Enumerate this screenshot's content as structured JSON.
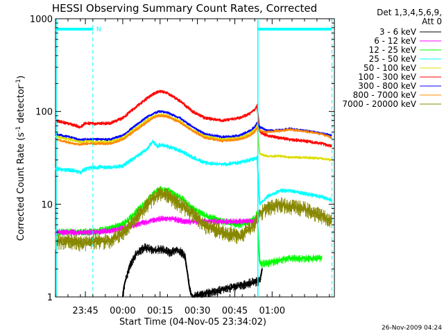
{
  "chart_data": {
    "type": "line",
    "title": "HESSI Observing Summary Count Rates, Corrected",
    "xlabel": "Start Time (04-Nov-05 23:34:02)",
    "ylabel_main": "Corrected Count Rate (s",
    "ylabel_exp1": "-1",
    "ylabel_mid": " detector",
    "ylabel_exp2": "-1",
    "ylabel_end": ")",
    "y_scale": "log",
    "ylim": [
      1,
      1000
    ],
    "xlim_minutes": [
      -12,
      100
    ],
    "x_ticks": [
      {
        "m": 0,
        "label": "23:45"
      },
      {
        "m": 15,
        "label": "00:00"
      },
      {
        "m": 30,
        "label": "00:15"
      },
      {
        "m": 45,
        "label": "00:30"
      },
      {
        "m": 60,
        "label": "00:45"
      },
      {
        "m": 75,
        "label": "01:00"
      }
    ],
    "y_ticks": [
      {
        "v": 1,
        "label": "1"
      },
      {
        "v": 10,
        "label": "10"
      },
      {
        "v": 100,
        "label": "100"
      },
      {
        "v": 1000,
        "label": "1000"
      }
    ],
    "legend_header": [
      "Det 1,3,4,5,6,9,",
      "Att 0"
    ],
    "legend": [
      {
        "label": "3 - 6 keV",
        "color": "#000000"
      },
      {
        "label": "6 - 12 keV",
        "color": "#ff00ff"
      },
      {
        "label": "12 - 25 keV",
        "color": "#00ff00"
      },
      {
        "label": "25 - 50 keV",
        "color": "#00ffff"
      },
      {
        "label": "50 - 100 keV",
        "color": "#dddd00"
      },
      {
        "label": "100 - 300 keV",
        "color": "#ff0000"
      },
      {
        "label": "300 - 800 keV",
        "color": "#0000ff"
      },
      {
        "label": "800 - 7000 keV",
        "color": "#ff8800"
      },
      {
        "label": "7000 - 20000 keV",
        "color": "#888800"
      }
    ],
    "night_flag": "N",
    "night_intervals": [
      [
        -12,
        3
      ],
      [
        69,
        99
      ]
    ],
    "dashed_markers": [
      3,
      99
    ],
    "solid_markers": [
      -12,
      69
    ],
    "series": [
      {
        "name": "100 - 300 keV",
        "color": "#ff0000",
        "noise": 0.05,
        "x": [
          -12,
          -5,
          -2,
          0,
          3,
          10,
          15,
          20,
          25,
          28,
          30,
          33,
          38,
          43,
          48,
          55,
          62,
          66,
          68,
          69,
          70,
          73,
          78,
          82,
          88,
          95,
          99
        ],
        "y": [
          80,
          72,
          68,
          75,
          74,
          75,
          85,
          110,
          140,
          158,
          165,
          158,
          130,
          100,
          85,
          80,
          85,
          95,
          105,
          115,
          60,
          55,
          52,
          50,
          48,
          45,
          42
        ]
      },
      {
        "name": "300 - 800 keV",
        "color": "#0000ff",
        "noise": 0.04,
        "x": [
          -12,
          -5,
          -2,
          0,
          3,
          10,
          15,
          20,
          25,
          28,
          30,
          33,
          38,
          43,
          48,
          55,
          62,
          66,
          68,
          69,
          70,
          73,
          78,
          82,
          88,
          95,
          99
        ],
        "y": [
          57,
          52,
          49,
          50,
          50,
          50,
          55,
          70,
          88,
          97,
          100,
          97,
          85,
          68,
          57,
          53,
          55,
          62,
          68,
          75,
          68,
          62,
          63,
          65,
          62,
          58,
          55
        ]
      },
      {
        "name": "50 - 100 keV",
        "color": "#dddd00",
        "noise": 0.04,
        "x": [
          -12,
          -5,
          -2,
          0,
          3,
          10,
          15,
          20,
          25,
          28,
          30,
          33,
          38,
          43,
          48,
          55,
          62,
          66,
          68,
          69,
          70,
          73,
          78,
          82,
          88,
          95,
          99
        ],
        "y": [
          54,
          49,
          47,
          48,
          47,
          47,
          52,
          65,
          82,
          90,
          92,
          90,
          78,
          63,
          54,
          50,
          52,
          58,
          64,
          70,
          35,
          33,
          33,
          32,
          32,
          31,
          30
        ]
      },
      {
        "name": "800 - 7000 keV",
        "color": "#ff8800",
        "noise": 0.04,
        "x": [
          -12,
          -5,
          -2,
          0,
          3,
          10,
          15,
          20,
          25,
          28,
          30,
          33,
          38,
          43,
          48,
          55,
          62,
          66,
          68,
          69,
          70,
          73,
          78,
          82,
          88,
          95,
          99
        ],
        "y": [
          50,
          45,
          44,
          45,
          45,
          45,
          50,
          62,
          78,
          88,
          90,
          88,
          76,
          62,
          52,
          48,
          50,
          55,
          60,
          66,
          62,
          60,
          62,
          64,
          61,
          57,
          52
        ]
      },
      {
        "name": "25 - 50 keV",
        "color": "#00ffff",
        "noise": 0.06,
        "x": [
          -12,
          -5,
          -2,
          0,
          3,
          10,
          15,
          20,
          25,
          27,
          29,
          30,
          33,
          38,
          43,
          48,
          55,
          62,
          66,
          68,
          69,
          70,
          73,
          78,
          82,
          88,
          95,
          99
        ],
        "y": [
          24,
          23,
          22,
          24,
          25,
          25,
          26,
          32,
          40,
          48,
          42,
          44,
          42,
          38,
          32,
          28,
          27,
          28,
          30,
          31,
          32,
          10,
          12,
          14,
          14,
          13,
          12,
          11
        ]
      },
      {
        "name": "12 - 25 keV",
        "color": "#00ff00",
        "noise": 0.1,
        "x": [
          -12,
          -5,
          -2,
          0,
          3,
          10,
          15,
          20,
          25,
          28,
          30,
          33,
          38,
          43,
          48,
          55,
          62,
          66,
          68,
          69,
          70,
          73,
          78,
          82,
          88,
          95
        ],
        "y": [
          5,
          5,
          5,
          5,
          5,
          5.5,
          6,
          8,
          11,
          13.5,
          14.5,
          14,
          12,
          9,
          7.5,
          6.5,
          6,
          6.5,
          7,
          8,
          2.3,
          2.3,
          2.5,
          2.6,
          2.6,
          2.6
        ]
      },
      {
        "name": "6 - 12 keV",
        "color": "#ff00ff",
        "noise": 0.08,
        "x": [
          -12,
          -5,
          0,
          5,
          10,
          15,
          20,
          25,
          30,
          35,
          40,
          45,
          50,
          55,
          60,
          65,
          69
        ],
        "y": [
          5,
          5,
          5,
          5,
          5.2,
          5.5,
          6,
          6.5,
          7,
          7,
          6.5,
          6.5,
          6.5,
          6.5,
          6.5,
          6.5,
          6.5
        ]
      },
      {
        "name": "7000 - 20000 keV",
        "color": "#888800",
        "noise": 0.2,
        "x": [
          -12,
          -5,
          -2,
          0,
          3,
          10,
          15,
          20,
          25,
          28,
          30,
          33,
          38,
          43,
          48,
          55,
          62,
          66,
          68,
          69,
          70,
          73,
          78,
          82,
          88,
          95,
          99
        ],
        "y": [
          4,
          4,
          3.8,
          3.8,
          4,
          4,
          5,
          7,
          10,
          12,
          13,
          12.5,
          10,
          8,
          6,
          5,
          4.5,
          5.5,
          6,
          7.5,
          8,
          9,
          10,
          9.5,
          9,
          7.5,
          6.5
        ]
      },
      {
        "name": "3 - 6 keV",
        "color": "#000000",
        "noise": 0.12,
        "x": [
          15,
          16,
          18,
          20,
          22,
          24,
          26,
          28,
          30,
          32,
          34,
          36,
          38,
          40,
          41,
          42,
          43,
          70,
          71
        ],
        "y": [
          1,
          1.5,
          2.2,
          2.8,
          3.2,
          3.4,
          3.3,
          3.2,
          3.3,
          3.2,
          3.0,
          3.2,
          3.1,
          2.8,
          1.8,
          1.2,
          1,
          1.5,
          2
        ]
      }
    ]
  },
  "footer": {
    "timestamp": "26-Nov-2009 04:24"
  }
}
